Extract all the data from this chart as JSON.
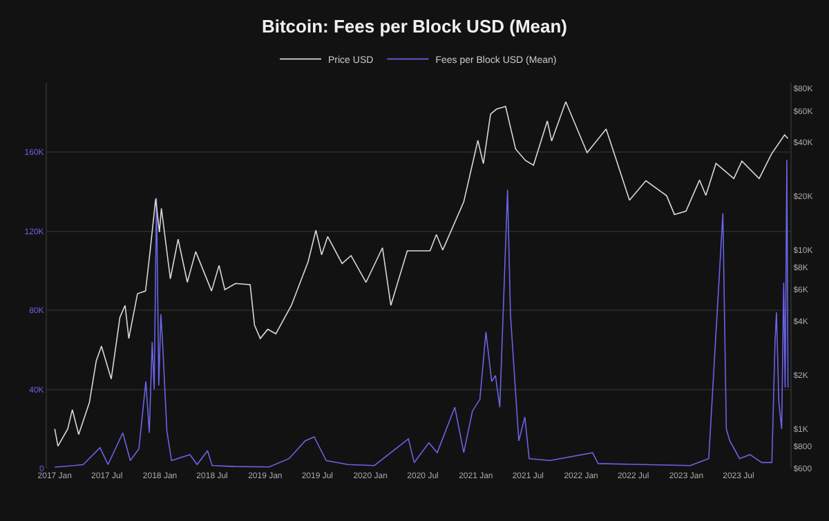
{
  "chart_data": {
    "type": "line",
    "title": "Bitcoin: Fees per Block USD (Mean)",
    "legend": "top",
    "grid": "y",
    "marker": "none",
    "line_style": "solid",
    "xlim": [
      "2016-12-05",
      "2023-12-28"
    ],
    "xticks": [
      {
        "value": "2017-01-01",
        "label": "2017 Jan"
      },
      {
        "value": "2017-07-01",
        "label": "2017 Jul"
      },
      {
        "value": "2018-01-01",
        "label": "2018 Jan"
      },
      {
        "value": "2018-07-01",
        "label": "2018 Jul"
      },
      {
        "value": "2019-01-01",
        "label": "2019 Jan"
      },
      {
        "value": "2019-07-01",
        "label": "2019 Jul"
      },
      {
        "value": "2020-01-01",
        "label": "2020 Jan"
      },
      {
        "value": "2020-07-01",
        "label": "2020 Jul"
      },
      {
        "value": "2021-01-01",
        "label": "2021 Jan"
      },
      {
        "value": "2021-07-01",
        "label": "2021 Jul"
      },
      {
        "value": "2022-01-01",
        "label": "2022 Jan"
      },
      {
        "value": "2022-07-01",
        "label": "2022 Jul"
      },
      {
        "value": "2023-01-01",
        "label": "2023 Jan"
      },
      {
        "value": "2023-07-01",
        "label": "2023 Jul"
      }
    ],
    "ylim": [
      0,
      195000
    ],
    "yticks": [
      0,
      {
        "value": 40000,
        "label": "40K"
      },
      {
        "value": 80000,
        "label": "80K"
      },
      {
        "value": 120000,
        "label": "120K"
      },
      {
        "value": 160000,
        "label": "160K"
      }
    ],
    "log": "y2",
    "y2lim": [
      600,
      86000
    ],
    "y2ticks": [
      {
        "value": 600,
        "label": "$600"
      },
      {
        "value": 800,
        "label": "$800"
      },
      {
        "value": 1000,
        "label": "$1K"
      },
      {
        "value": 2000,
        "label": "$2K"
      },
      {
        "value": 4000,
        "label": "$4K"
      },
      {
        "value": 6000,
        "label": "$6K"
      },
      {
        "value": 8000,
        "label": "$8K"
      },
      {
        "value": 10000,
        "label": "$10K"
      },
      {
        "value": 20000,
        "label": "$20K"
      },
      {
        "value": 40000,
        "label": "$40K"
      },
      {
        "value": 60000,
        "label": "$60K"
      },
      {
        "value": 80000,
        "label": "$80K"
      }
    ],
    "series": [
      {
        "name": "Price USD",
        "color": "#d9d9d9",
        "axis": "y2",
        "x": [
          "2017-01-01",
          "2017-01-12",
          "2017-02-15",
          "2017-03-03",
          "2017-03-25",
          "2017-05-01",
          "2017-05-25",
          "2017-06-12",
          "2017-07-16",
          "2017-08-15",
          "2017-09-02",
          "2017-09-15",
          "2017-10-15",
          "2017-11-12",
          "2017-11-28",
          "2017-12-17",
          "2017-12-30",
          "2018-01-06",
          "2018-02-06",
          "2018-03-05",
          "2018-04-06",
          "2018-05-05",
          "2018-06-29",
          "2018-07-25",
          "2018-08-14",
          "2018-09-20",
          "2018-11-10",
          "2018-11-25",
          "2018-12-15",
          "2019-01-10",
          "2019-02-07",
          "2019-04-02",
          "2019-05-30",
          "2019-06-26",
          "2019-07-16",
          "2019-08-06",
          "2019-09-25",
          "2019-10-26",
          "2019-12-17",
          "2020-02-12",
          "2020-03-12",
          "2020-05-08",
          "2020-07-26",
          "2020-08-17",
          "2020-09-08",
          "2020-11-20",
          "2021-01-08",
          "2021-01-27",
          "2021-02-21",
          "2021-03-13",
          "2021-04-14",
          "2021-05-19",
          "2021-06-22",
          "2021-07-20",
          "2021-09-06",
          "2021-09-21",
          "2021-11-09",
          "2022-01-22",
          "2022-03-29",
          "2022-05-12",
          "2022-06-18",
          "2022-08-14",
          "2022-10-25",
          "2022-11-21",
          "2022-12-31",
          "2023-02-16",
          "2023-03-10",
          "2023-04-14",
          "2023-06-15",
          "2023-07-13",
          "2023-09-11",
          "2023-10-24",
          "2023-12-08",
          "2023-12-20"
        ],
        "values": [
          1000,
          800,
          1000,
          1280,
          930,
          1400,
          2400,
          2900,
          1900,
          4200,
          4900,
          3200,
          5700,
          5900,
          9900,
          19300,
          12600,
          17100,
          6900,
          11500,
          6600,
          9800,
          5900,
          8200,
          6000,
          6500,
          6400,
          3800,
          3200,
          3600,
          3400,
          4900,
          8600,
          12900,
          9400,
          11900,
          8400,
          9300,
          6600,
          10300,
          4900,
          9900,
          9900,
          12200,
          10000,
          18600,
          41000,
          30400,
          57500,
          61300,
          63500,
          36700,
          31700,
          29800,
          52700,
          40700,
          67500,
          35000,
          47500,
          28900,
          19000,
          24400,
          20100,
          15800,
          16500,
          24600,
          20200,
          30500,
          25100,
          31400,
          25100,
          34500,
          44000,
          42000
        ]
      },
      {
        "name": "Fees per Block USD (Mean)",
        "color": "#6b63e8",
        "axis": "y",
        "x": [
          "2017-01-01",
          "2017-03-10",
          "2017-04-10",
          "2017-06-07",
          "2017-07-05",
          "2017-08-25",
          "2017-09-20",
          "2017-10-20",
          "2017-11-13",
          "2017-11-25",
          "2017-12-05",
          "2017-12-12",
          "2017-12-20",
          "2017-12-28",
          "2018-01-04",
          "2018-01-10",
          "2018-01-25",
          "2018-02-10",
          "2018-04-15",
          "2018-05-10",
          "2018-06-15",
          "2018-07-01",
          "2018-09-15",
          "2019-01-15",
          "2019-03-25",
          "2019-05-20",
          "2019-06-20",
          "2019-08-01",
          "2019-10-15",
          "2020-01-15",
          "2020-05-12",
          "2020-06-01",
          "2020-07-22",
          "2020-08-20",
          "2020-10-20",
          "2020-11-20",
          "2020-12-20",
          "2021-01-15",
          "2021-02-05",
          "2021-02-25",
          "2021-03-10",
          "2021-03-25",
          "2021-04-21",
          "2021-05-01",
          "2021-05-15",
          "2021-05-30",
          "2021-06-20",
          "2021-07-05",
          "2021-09-15",
          "2022-02-10",
          "2022-03-01",
          "2022-08-01",
          "2023-01-15",
          "2023-03-20",
          "2023-05-08",
          "2023-05-20",
          "2023-06-01",
          "2023-07-05",
          "2023-08-10",
          "2023-09-20",
          "2023-10-25",
          "2023-11-05",
          "2023-11-10",
          "2023-11-18",
          "2023-11-28",
          "2023-12-05",
          "2023-12-10",
          "2023-12-16",
          "2023-12-20"
        ],
        "values": [
          700,
          1500,
          2000,
          10500,
          2000,
          18000,
          4000,
          10000,
          44000,
          18000,
          64000,
          40000,
          137000,
          42000,
          78000,
          64000,
          19000,
          4000,
          7000,
          2000,
          9000,
          1500,
          1000,
          800,
          5000,
          14000,
          16000,
          4000,
          2000,
          1500,
          15000,
          3000,
          13000,
          8000,
          31000,
          8000,
          29000,
          35000,
          69000,
          44000,
          47000,
          31000,
          141000,
          78000,
          47000,
          14000,
          26000,
          5000,
          4000,
          8000,
          2500,
          2000,
          1500,
          5000,
          129000,
          20000,
          14000,
          5000,
          7000,
          3000,
          3000,
          64000,
          79000,
          34000,
          20000,
          94000,
          41000,
          156000,
          41000
        ]
      }
    ]
  }
}
